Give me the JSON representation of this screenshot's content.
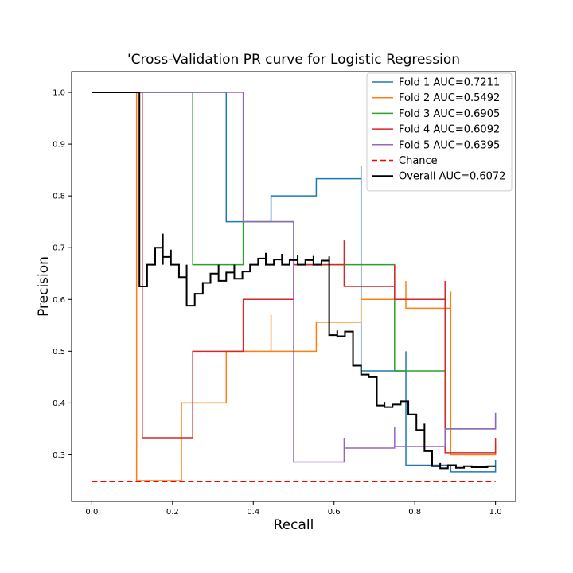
{
  "chart_data": {
    "type": "line",
    "title": "'Cross-Validation PR curve for Logistic Regression",
    "xlabel": "Recall",
    "ylabel": "Precision",
    "xlim": [
      -0.05,
      1.05
    ],
    "ylim": [
      0.21,
      1.04
    ],
    "xticks": [
      "0.0",
      "0.2",
      "0.4",
      "0.6",
      "0.8",
      "1.0"
    ],
    "yticks": [
      "0.3",
      "0.4",
      "0.5",
      "0.6",
      "0.7",
      "0.8",
      "0.9",
      "1.0"
    ],
    "grid": false,
    "legend_position": "top-right",
    "series": [
      {
        "name": "Fold 1 AUC=0.7211",
        "color": "#1f77b4",
        "dash": false,
        "points": [
          [
            0,
            1.0
          ],
          [
            0.333,
            1.0
          ],
          [
            0.333,
            0.75
          ],
          [
            0.444,
            0.75
          ],
          [
            0.444,
            0.8
          ],
          [
            0.556,
            0.8
          ],
          [
            0.556,
            0.833
          ],
          [
            0.667,
            0.833
          ],
          [
            0.667,
            0.857
          ],
          [
            0.667,
            0.462
          ],
          [
            0.778,
            0.462
          ],
          [
            0.778,
            0.5
          ],
          [
            0.778,
            0.28
          ],
          [
            0.889,
            0.28
          ],
          [
            0.889,
            0.267
          ],
          [
            1.0,
            0.267
          ],
          [
            1.0,
            0.29
          ]
        ]
      },
      {
        "name": "Fold 2 AUC=0.5492",
        "color": "#ff7f0e",
        "dash": false,
        "points": [
          [
            0,
            1.0
          ],
          [
            0.111,
            1.0
          ],
          [
            0.111,
            0.25
          ],
          [
            0.222,
            0.25
          ],
          [
            0.222,
            0.4
          ],
          [
            0.333,
            0.4
          ],
          [
            0.333,
            0.5
          ],
          [
            0.444,
            0.5
          ],
          [
            0.444,
            0.57
          ],
          [
            0.444,
            0.5
          ],
          [
            0.556,
            0.5
          ],
          [
            0.556,
            0.556
          ],
          [
            0.667,
            0.556
          ],
          [
            0.667,
            0.6
          ],
          [
            0.778,
            0.6
          ],
          [
            0.778,
            0.636
          ],
          [
            0.778,
            0.583
          ],
          [
            0.889,
            0.583
          ],
          [
            0.889,
            0.615
          ],
          [
            0.889,
            0.3
          ],
          [
            1.0,
            0.3
          ],
          [
            1.0,
            0.32
          ]
        ]
      },
      {
        "name": "Fold 3 AUC=0.6905",
        "color": "#2ca02c",
        "dash": false,
        "points": [
          [
            0,
            1.0
          ],
          [
            0.25,
            1.0
          ],
          [
            0.25,
            0.667
          ],
          [
            0.375,
            0.667
          ],
          [
            0.375,
            0.75
          ],
          [
            0.5,
            0.75
          ],
          [
            0.5,
            0.667
          ],
          [
            0.625,
            0.667
          ],
          [
            0.625,
            0.667
          ],
          [
            0.75,
            0.667
          ],
          [
            0.75,
            0.462
          ],
          [
            0.875,
            0.462
          ],
          [
            0.875,
            0.35
          ],
          [
            1.0,
            0.35
          ],
          [
            1.0,
            0.38
          ]
        ]
      },
      {
        "name": "Fold 4 AUC=0.6092",
        "color": "#d62728",
        "dash": false,
        "points": [
          [
            0,
            1.0
          ],
          [
            0.125,
            1.0
          ],
          [
            0.125,
            0.333
          ],
          [
            0.25,
            0.333
          ],
          [
            0.25,
            0.5
          ],
          [
            0.375,
            0.5
          ],
          [
            0.375,
            0.6
          ],
          [
            0.5,
            0.6
          ],
          [
            0.5,
            0.667
          ],
          [
            0.625,
            0.667
          ],
          [
            0.625,
            0.714
          ],
          [
            0.625,
            0.625
          ],
          [
            0.75,
            0.625
          ],
          [
            0.75,
            0.667
          ],
          [
            0.75,
            0.6
          ],
          [
            0.875,
            0.6
          ],
          [
            0.875,
            0.636
          ],
          [
            0.875,
            0.304
          ],
          [
            1.0,
            0.304
          ],
          [
            1.0,
            0.333
          ]
        ]
      },
      {
        "name": "Fold 5 AUC=0.6395",
        "color": "#9467bd",
        "dash": false,
        "points": [
          [
            0,
            1.0
          ],
          [
            0.375,
            1.0
          ],
          [
            0.375,
            0.75
          ],
          [
            0.5,
            0.75
          ],
          [
            0.5,
            0.286
          ],
          [
            0.625,
            0.286
          ],
          [
            0.625,
            0.333
          ],
          [
            0.625,
            0.313
          ],
          [
            0.75,
            0.313
          ],
          [
            0.75,
            0.353
          ],
          [
            0.75,
            0.316
          ],
          [
            0.875,
            0.316
          ],
          [
            0.875,
            0.35
          ],
          [
            1.0,
            0.35
          ],
          [
            1.0,
            0.381
          ]
        ]
      },
      {
        "name": "Chance",
        "color": "#ff0000",
        "dash": true,
        "points": [
          [
            0,
            0.248
          ],
          [
            1.0,
            0.248
          ]
        ]
      },
      {
        "name": "Overall AUC=0.6072",
        "color": "#000000",
        "dash": false,
        "points": [
          [
            0,
            1.0
          ],
          [
            0.118,
            1.0
          ],
          [
            0.118,
            0.625
          ],
          [
            0.137,
            0.625
          ],
          [
            0.137,
            0.667
          ],
          [
            0.157,
            0.667
          ],
          [
            0.157,
            0.7
          ],
          [
            0.176,
            0.7
          ],
          [
            0.176,
            0.667
          ],
          [
            0.176,
            0.727
          ],
          [
            0.176,
            0.682
          ],
          [
            0.196,
            0.682
          ],
          [
            0.196,
            0.696
          ],
          [
            0.196,
            0.667
          ],
          [
            0.216,
            0.667
          ],
          [
            0.216,
            0.643
          ],
          [
            0.235,
            0.643
          ],
          [
            0.235,
            0.667
          ],
          [
            0.235,
            0.588
          ],
          [
            0.255,
            0.588
          ],
          [
            0.255,
            0.611
          ],
          [
            0.275,
            0.611
          ],
          [
            0.275,
            0.632
          ],
          [
            0.294,
            0.632
          ],
          [
            0.294,
            0.65
          ],
          [
            0.314,
            0.65
          ],
          [
            0.314,
            0.667
          ],
          [
            0.314,
            0.636
          ],
          [
            0.333,
            0.636
          ],
          [
            0.333,
            0.652
          ],
          [
            0.353,
            0.652
          ],
          [
            0.353,
            0.667
          ],
          [
            0.353,
            0.64
          ],
          [
            0.373,
            0.64
          ],
          [
            0.373,
            0.654
          ],
          [
            0.392,
            0.654
          ],
          [
            0.392,
            0.667
          ],
          [
            0.412,
            0.667
          ],
          [
            0.412,
            0.679
          ],
          [
            0.431,
            0.679
          ],
          [
            0.431,
            0.69
          ],
          [
            0.431,
            0.667
          ],
          [
            0.451,
            0.667
          ],
          [
            0.451,
            0.677
          ],
          [
            0.471,
            0.677
          ],
          [
            0.471,
            0.688
          ],
          [
            0.471,
            0.667
          ],
          [
            0.49,
            0.667
          ],
          [
            0.49,
            0.676
          ],
          [
            0.51,
            0.676
          ],
          [
            0.51,
            0.686
          ],
          [
            0.51,
            0.667
          ],
          [
            0.529,
            0.667
          ],
          [
            0.529,
            0.676
          ],
          [
            0.549,
            0.676
          ],
          [
            0.549,
            0.684
          ],
          [
            0.549,
            0.667
          ],
          [
            0.569,
            0.667
          ],
          [
            0.569,
            0.675
          ],
          [
            0.588,
            0.675
          ],
          [
            0.588,
            0.683
          ],
          [
            0.588,
            0.531
          ],
          [
            0.608,
            0.531
          ],
          [
            0.608,
            0.54
          ],
          [
            0.608,
            0.529
          ],
          [
            0.627,
            0.529
          ],
          [
            0.627,
            0.538
          ],
          [
            0.647,
            0.538
          ],
          [
            0.647,
            0.52
          ],
          [
            0.647,
            0.472
          ],
          [
            0.667,
            0.472
          ],
          [
            0.667,
            0.455
          ],
          [
            0.686,
            0.455
          ],
          [
            0.686,
            0.45
          ],
          [
            0.706,
            0.45
          ],
          [
            0.706,
            0.395
          ],
          [
            0.725,
            0.395
          ],
          [
            0.725,
            0.402
          ],
          [
            0.725,
            0.392
          ],
          [
            0.745,
            0.392
          ],
          [
            0.745,
            0.397
          ],
          [
            0.765,
            0.397
          ],
          [
            0.765,
            0.403
          ],
          [
            0.784,
            0.403
          ],
          [
            0.784,
            0.388
          ],
          [
            0.784,
            0.378
          ],
          [
            0.804,
            0.378
          ],
          [
            0.804,
            0.36
          ],
          [
            0.804,
            0.348
          ],
          [
            0.824,
            0.348
          ],
          [
            0.824,
            0.36
          ],
          [
            0.824,
            0.307
          ],
          [
            0.843,
            0.307
          ],
          [
            0.843,
            0.278
          ],
          [
            0.863,
            0.278
          ],
          [
            0.863,
            0.284
          ],
          [
            0.863,
            0.274
          ],
          [
            0.882,
            0.274
          ],
          [
            0.882,
            0.28
          ],
          [
            0.902,
            0.28
          ],
          [
            0.902,
            0.275
          ],
          [
            0.922,
            0.275
          ],
          [
            0.922,
            0.278
          ],
          [
            0.941,
            0.278
          ],
          [
            0.941,
            0.276
          ],
          [
            0.98,
            0.276
          ],
          [
            0.98,
            0.278
          ],
          [
            1.0,
            0.278
          ]
        ]
      }
    ]
  }
}
